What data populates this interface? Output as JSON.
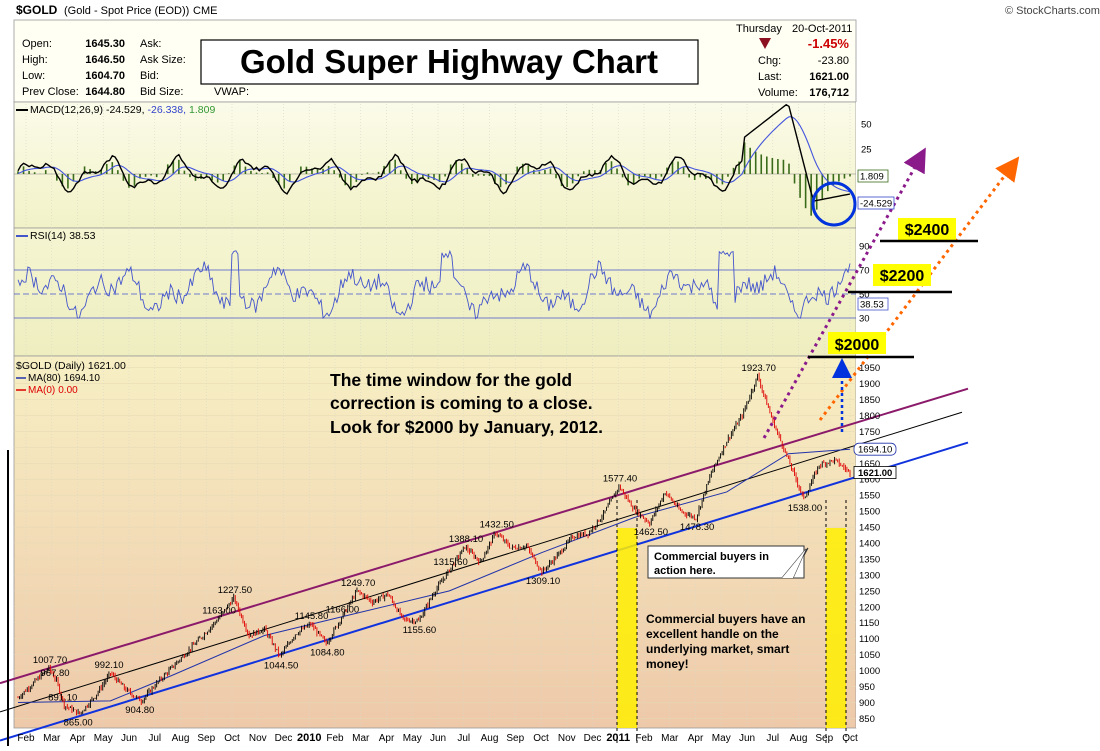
{
  "header": {
    "symbol": "$GOLD",
    "description": "(Gold - Spot Price (EOD))",
    "exchange": "CME",
    "brand": "© StockCharts.com",
    "day": "Thursday",
    "date": "20-Oct-2011",
    "change_pct": "-1.45%",
    "chg_label": "Chg:",
    "chg_value": "-23.80",
    "last_label": "Last:",
    "last_value": "1621.00",
    "volume_label": "Volume:",
    "volume_value": "176,712",
    "quote": [
      {
        "label": "Open:",
        "value": "1645.30",
        "label2": "Ask:"
      },
      {
        "label": "High:",
        "value": "1646.50",
        "label2": "Ask Size:"
      },
      {
        "label": "Low:",
        "value": "1604.70",
        "label2": "Bid:"
      },
      {
        "label": "Prev Close:",
        "value": "1644.80",
        "label2": "Bid Size:"
      }
    ],
    "vwap_label": "VWAP:"
  },
  "title_box": "Gold Super Highway Chart",
  "macd": {
    "legend_name": "MACD(12,26,9)",
    "legend_v1": "-24.529,",
    "legend_v2": "-26.338,",
    "legend_v3": "1.809",
    "ticks": [
      {
        "label": "50",
        "v": 50
      },
      {
        "label": "25",
        "v": 25
      }
    ],
    "badge_hist": "1.809",
    "badge_macd": "-24.529",
    "colors": {
      "macd": "#000000",
      "signal": "#4455dd",
      "hist": "#3a6b1a",
      "circle": "#0033dd"
    }
  },
  "rsi": {
    "legend_name": "RSI(14)",
    "legend_value": "38.53",
    "ticks": [
      {
        "label": "90",
        "v": 90
      },
      {
        "label": "70",
        "v": 70
      },
      {
        "label": "50",
        "v": 50
      },
      {
        "label": "30",
        "v": 30
      }
    ],
    "badge": "38.53",
    "colors": {
      "line": "#4455cc",
      "fill": "#6699cc"
    }
  },
  "price": {
    "legend_name": "$GOLD (Daily)",
    "legend_value": "1621.00",
    "ma80_label": "MA(80)",
    "ma80_value": "1694.10",
    "ma0_label": "MA(0)",
    "ma0_value": "0.00",
    "ticks": [
      "850",
      "900",
      "950",
      "1000",
      "1050",
      "1100",
      "1150",
      "1200",
      "1250",
      "1300",
      "1350",
      "1400",
      "1450",
      "1500",
      "1550",
      "1600",
      "1650",
      "1700",
      "1750",
      "1800",
      "1850",
      "1900",
      "1950"
    ],
    "badge_ma": "1694.10",
    "badge_last": "1621.00",
    "colors": {
      "up": "#000000",
      "down": "#dd0000",
      "ma80": "#2233aa",
      "upper_channel": "#8b1a6b",
      "lower_channel": "#1133dd",
      "mid_line": "#000000"
    }
  },
  "annotations": {
    "main_text": [
      "The time window for the gold",
      "correction is coming to a close.",
      "Look for $2000 by January, 2012."
    ],
    "comment1": [
      "Commercial buyers in",
      "action here."
    ],
    "comment2": [
      "Commercial buyers have an",
      "excellent handle on the",
      "underlying market, smart",
      "money!"
    ],
    "targets": [
      "$2400",
      "$2200",
      "$2000"
    ]
  },
  "chart_data": {
    "type": "line",
    "title": "Gold Super Highway Chart",
    "x_labels": [
      "Feb",
      "Mar",
      "Apr",
      "May",
      "Jun",
      "Jul",
      "Aug",
      "Sep",
      "Oct",
      "Nov",
      "Dec",
      "2010",
      "Feb",
      "Mar",
      "Apr",
      "May",
      "Jun",
      "Jul",
      "Aug",
      "Sep",
      "Oct",
      "Nov",
      "Dec",
      "2011",
      "Feb",
      "Mar",
      "Apr",
      "May",
      "Jun",
      "Jul",
      "Aug",
      "Sep",
      "Oct"
    ],
    "ylim": [
      820,
      1980
    ],
    "series": [
      {
        "name": "$GOLD (Daily)",
        "points": [
          [
            0,
            915
          ],
          [
            2,
            1007.7
          ],
          [
            2.5,
            967.8
          ],
          [
            3,
            891.1
          ],
          [
            4,
            865.0
          ],
          [
            5,
            920
          ],
          [
            6,
            992.1
          ],
          [
            7,
            940
          ],
          [
            8,
            904.8
          ],
          [
            9,
            960
          ],
          [
            10,
            1010
          ],
          [
            11,
            1060
          ],
          [
            12,
            1110
          ],
          [
            13,
            1163.0
          ],
          [
            14,
            1227.5
          ],
          [
            15,
            1110
          ],
          [
            16,
            1130
          ],
          [
            17,
            1044.5
          ],
          [
            18,
            1115
          ],
          [
            19,
            1145.8
          ],
          [
            20,
            1084.8
          ],
          [
            21,
            1166.0
          ],
          [
            22,
            1249.7
          ],
          [
            23,
            1215
          ],
          [
            24,
            1240
          ],
          [
            25,
            1160
          ],
          [
            26,
            1155.6
          ],
          [
            27,
            1245
          ],
          [
            28,
            1315.6
          ],
          [
            29,
            1388.1
          ],
          [
            30,
            1340
          ],
          [
            31,
            1432.5
          ],
          [
            32,
            1385
          ],
          [
            33,
            1390
          ],
          [
            34,
            1309.1
          ],
          [
            35,
            1360
          ],
          [
            36,
            1420
          ],
          [
            37,
            1430
          ],
          [
            38,
            1490
          ],
          [
            39,
            1577.4
          ],
          [
            40,
            1505
          ],
          [
            41,
            1462.5
          ],
          [
            42,
            1560
          ],
          [
            43,
            1500
          ],
          [
            44,
            1478.3
          ],
          [
            45,
            1620
          ],
          [
            46,
            1720
          ],
          [
            47,
            1800
          ],
          [
            48,
            1923.7
          ],
          [
            49,
            1780
          ],
          [
            50,
            1660
          ],
          [
            51,
            1538.0
          ],
          [
            52,
            1645
          ],
          [
            53,
            1660
          ],
          [
            54,
            1621.0
          ]
        ],
        "labels": [
          {
            "x": 2,
            "y": 1007.7,
            "text": "1007.70"
          },
          {
            "x": 2.5,
            "y": 967.8,
            "text": "967.80"
          },
          {
            "x": 3,
            "y": 891.1,
            "text": "891.10"
          },
          {
            "x": 4,
            "y": 865.0,
            "text": "865.00"
          },
          {
            "x": 6,
            "y": 992.1,
            "text": "992.10"
          },
          {
            "x": 8,
            "y": 904.8,
            "text": "904.80"
          },
          {
            "x": 13,
            "y": 1163.0,
            "text": "1163.00"
          },
          {
            "x": 14,
            "y": 1227.5,
            "text": "1227.50"
          },
          {
            "x": 17,
            "y": 1044.5,
            "text": "1044.50"
          },
          {
            "x": 19,
            "y": 1145.8,
            "text": "1145.80"
          },
          {
            "x": 20,
            "y": 1084.8,
            "text": "1084.80"
          },
          {
            "x": 21,
            "y": 1166.0,
            "text": "1166.00"
          },
          {
            "x": 22,
            "y": 1249.7,
            "text": "1249.70"
          },
          {
            "x": 26,
            "y": 1155.6,
            "text": "1155.60"
          },
          {
            "x": 28,
            "y": 1315.6,
            "text": "1315.60"
          },
          {
            "x": 29,
            "y": 1388.1,
            "text": "1388.10"
          },
          {
            "x": 31,
            "y": 1432.5,
            "text": "1432.50"
          },
          {
            "x": 34,
            "y": 1309.1,
            "text": "1309.10"
          },
          {
            "x": 39,
            "y": 1577.4,
            "text": "1577.40"
          },
          {
            "x": 41,
            "y": 1462.5,
            "text": "1462.50"
          },
          {
            "x": 44,
            "y": 1478.3,
            "text": "1478.30"
          },
          {
            "x": 48,
            "y": 1923.7,
            "text": "1923.70"
          },
          {
            "x": 51,
            "y": 1538.0,
            "text": "1538.00"
          }
        ]
      },
      {
        "name": "MA(80)",
        "points": [
          [
            0,
            900
          ],
          [
            6,
            905
          ],
          [
            10,
            985
          ],
          [
            16,
            1110
          ],
          [
            22,
            1180
          ],
          [
            28,
            1250
          ],
          [
            34,
            1370
          ],
          [
            40,
            1480
          ],
          [
            46,
            1560
          ],
          [
            50,
            1680
          ],
          [
            54,
            1694.1
          ]
        ]
      }
    ],
    "channels": [
      {
        "name": "upper_channel",
        "from": [
          0,
          970
        ],
        "to": [
          56,
          1800
        ]
      },
      {
        "name": "lower_channel",
        "from": [
          0,
          790
        ],
        "to": [
          56,
          1630
        ]
      },
      {
        "name": "mid_line",
        "from": [
          0,
          880
        ],
        "to": [
          56,
          1730
        ]
      }
    ]
  }
}
